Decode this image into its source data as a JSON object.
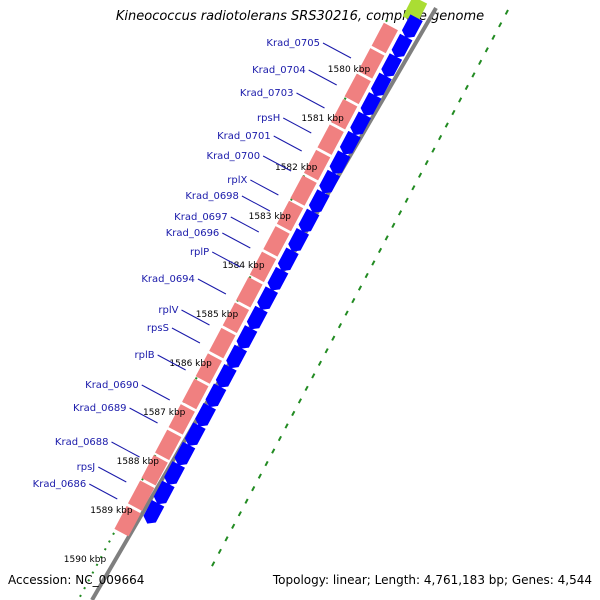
{
  "title": "Kineococcus radiotolerans SRS30216, complete genome",
  "footer": {
    "accession": "Accession: NC_009664",
    "summary": "Topology: linear; Length: 4,761,183 bp; Genes: 4,544"
  },
  "colors": {
    "gene_label": "#1a1aaa",
    "leader_line": "#1a1aaa",
    "ruler_label": "#000000",
    "tick_mark": "#228b22",
    "cds_arrow": "#0000ff",
    "gene_bar": "#f08080",
    "backbone": "#7f7f7f",
    "top_highlight": "#aadd33"
  },
  "ruler": [
    {
      "label": "1580 kbp"
    },
    {
      "label": "1581 kbp"
    },
    {
      "label": "1582 kbp"
    },
    {
      "label": "1583 kbp"
    },
    {
      "label": "1584 kbp"
    },
    {
      "label": "1585 kbp"
    },
    {
      "label": "1586 kbp"
    },
    {
      "label": "1587 kbp"
    },
    {
      "label": "1588 kbp"
    },
    {
      "label": "1589 kbp"
    },
    {
      "label": "1590 kbp"
    }
  ],
  "genes": [
    {
      "name": "Krad_0705"
    },
    {
      "name": "Krad_0704"
    },
    {
      "name": "Krad_0703"
    },
    {
      "name": "rpsH"
    },
    {
      "name": "Krad_0701"
    },
    {
      "name": "Krad_0700"
    },
    {
      "name": "rplX"
    },
    {
      "name": "Krad_0698"
    },
    {
      "name": "Krad_0697"
    },
    {
      "name": "Krad_0696"
    },
    {
      "name": "rplP"
    },
    {
      "name": "Krad_0694"
    },
    {
      "name": "rplV"
    },
    {
      "name": "rpsS"
    },
    {
      "name": "rplB"
    },
    {
      "name": "Krad_0690"
    },
    {
      "name": "Krad_0689"
    },
    {
      "name": "Krad_0688"
    },
    {
      "name": "rpsJ"
    },
    {
      "name": "Krad_0686"
    }
  ]
}
